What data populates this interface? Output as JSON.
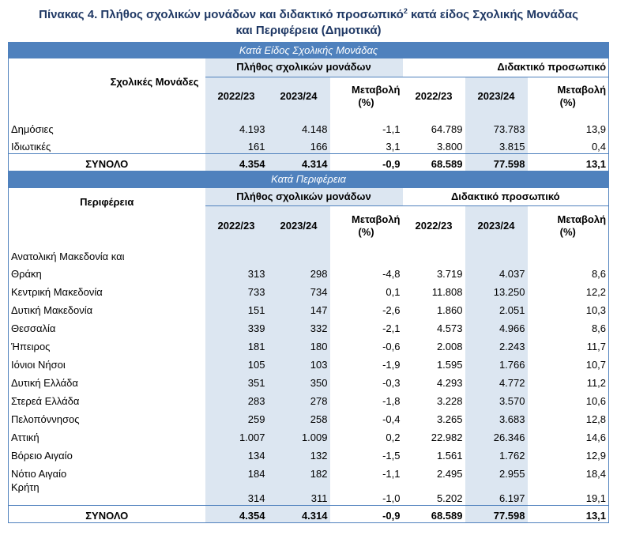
{
  "title": {
    "line1": "Πίνακας 4. Πλήθος σχολικών μονάδων και διδακτικό προσωπικό",
    "sup": "2",
    "line1b": " κατά είδος Σχολικής Μονάδας",
    "line2": "και Περιφέρεια (Δημοτικά)"
  },
  "section1": {
    "band": "Κατά Είδος Σχολικής Μονάδας",
    "row_header": "Σχολικές Μονάδες",
    "group1": "Πλήθος σχολικών μονάδων",
    "group2": "Διδακτικό προσωπικό",
    "col_y1": "2022/23",
    "col_y2": "2023/24",
    "col_change_l1": "Μεταβολή",
    "col_change_l2": "(%)",
    "rows": [
      {
        "label": "Δημόσιες",
        "u1": "4.193",
        "u2": "4.148",
        "uc": "-1,1",
        "t1": "64.789",
        "t2": "73.783",
        "tc": "13,9"
      },
      {
        "label": "Ιδιωτικές",
        "u1": "161",
        "u2": "166",
        "uc": "3,1",
        "t1": "3.800",
        "t2": "3.815",
        "tc": "0,4"
      }
    ],
    "total": {
      "label": "ΣΥΝΟΛΟ",
      "u1": "4.354",
      "u2": "4.314",
      "uc": "-0,9",
      "t1": "68.589",
      "t2": "77.598",
      "tc": "13,1"
    }
  },
  "section2": {
    "band": "Κατά Περιφέρεια",
    "row_header": "Περιφέρεια",
    "group1": "Πλήθος σχολικών μονάδων",
    "group2": "Διδακτικό προσωπικό",
    "col_y1": "2022/23",
    "col_y2": "2023/24",
    "col_change_l1": "Μεταβολή",
    "col_change_l2": "(%)",
    "rows": [
      {
        "label_l1": "Ανατολική Μακεδονία και",
        "label_l2": "Θράκη",
        "u1": "313",
        "u2": "298",
        "uc": "-4,8",
        "t1": "3.719",
        "t2": "4.037",
        "tc": "8,6"
      },
      {
        "label": "Κεντρική Μακεδονία",
        "u1": "733",
        "u2": "734",
        "uc": "0,1",
        "t1": "11.808",
        "t2": "13.250",
        "tc": "12,2"
      },
      {
        "label": "Δυτική Μακεδονία",
        "u1": "151",
        "u2": "147",
        "uc": "-2,6",
        "t1": "1.860",
        "t2": "2.051",
        "tc": "10,3"
      },
      {
        "label": "Θεσσαλία",
        "u1": "339",
        "u2": "332",
        "uc": "-2,1",
        "t1": "4.573",
        "t2": "4.966",
        "tc": "8,6"
      },
      {
        "label": "Ήπειρος",
        "u1": "181",
        "u2": "180",
        "uc": "-0,6",
        "t1": "2.008",
        "t2": "2.243",
        "tc": "11,7"
      },
      {
        "label": "Ιόνιοι Νήσοι",
        "u1": "105",
        "u2": "103",
        "uc": "-1,9",
        "t1": "1.595",
        "t2": "1.766",
        "tc": "10,7"
      },
      {
        "label": "Δυτική Ελλάδα",
        "u1": "351",
        "u2": "350",
        "uc": "-0,3",
        "t1": "4.293",
        "t2": "4.772",
        "tc": "11,2"
      },
      {
        "label": "Στερεά Ελλάδα",
        "u1": "283",
        "u2": "278",
        "uc": "-1,8",
        "t1": "3.228",
        "t2": "3.570",
        "tc": "10,6"
      },
      {
        "label": "Πελοπόννησος",
        "u1": "259",
        "u2": "258",
        "uc": "-0,4",
        "t1": "3.265",
        "t2": "3.683",
        "tc": "12,8"
      },
      {
        "label": "Αττική",
        "u1": "1.007",
        "u2": "1.009",
        "uc": "0,2",
        "t1": "22.982",
        "t2": "26.346",
        "tc": "14,6"
      },
      {
        "label": "Βόρειο Αιγαίο",
        "u1": "134",
        "u2": "132",
        "uc": "-1,5",
        "t1": "1.561",
        "t2": "1.762",
        "tc": "12,9"
      },
      {
        "label": "Νότιο Αιγαίο",
        "u1": "184",
        "u2": "182",
        "uc": "-1,1",
        "t1": "2.495",
        "t2": "2.955",
        "tc": "18,4"
      },
      {
        "label": "Κρήτη",
        "u1": "314",
        "u2": "311",
        "uc": "-1,0",
        "t1": "5.202",
        "t2": "6.197",
        "tc": "19,1"
      }
    ],
    "total": {
      "label": "ΣΥΝΟΛΟ",
      "u1": "4.354",
      "u2": "4.314",
      "uc": "-0,9",
      "t1": "68.589",
      "t2": "77.598",
      "tc": "13,1"
    }
  },
  "colors": {
    "band": "#4f81bd",
    "shade": "#dce6f1",
    "title": "#1f3864"
  }
}
